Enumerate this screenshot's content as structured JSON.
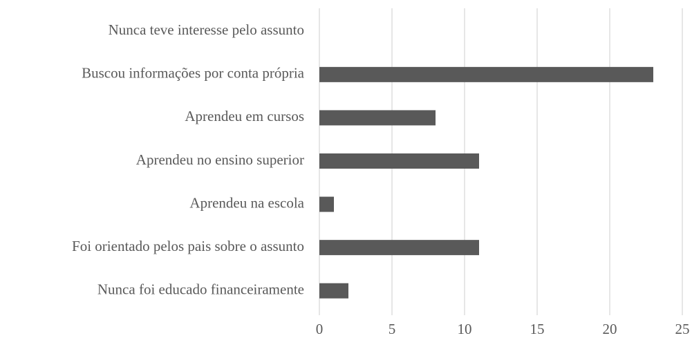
{
  "chart_data": {
    "type": "bar",
    "categories": [
      "Nunca teve interesse pelo assunto",
      "Buscou informações por conta própria",
      "Aprendeu em cursos",
      "Aprendeu no ensino superior",
      "Aprendeu na escola",
      "Foi orientado pelos pais sobre o assunto",
      "Nunca foi educado financeiramente"
    ],
    "values": [
      0,
      23,
      8,
      11,
      1,
      11,
      2
    ],
    "color": "#595959",
    "xlim": [
      0,
      25
    ],
    "xticks": [
      0,
      5,
      10,
      15,
      20,
      25
    ],
    "grid": true
  }
}
